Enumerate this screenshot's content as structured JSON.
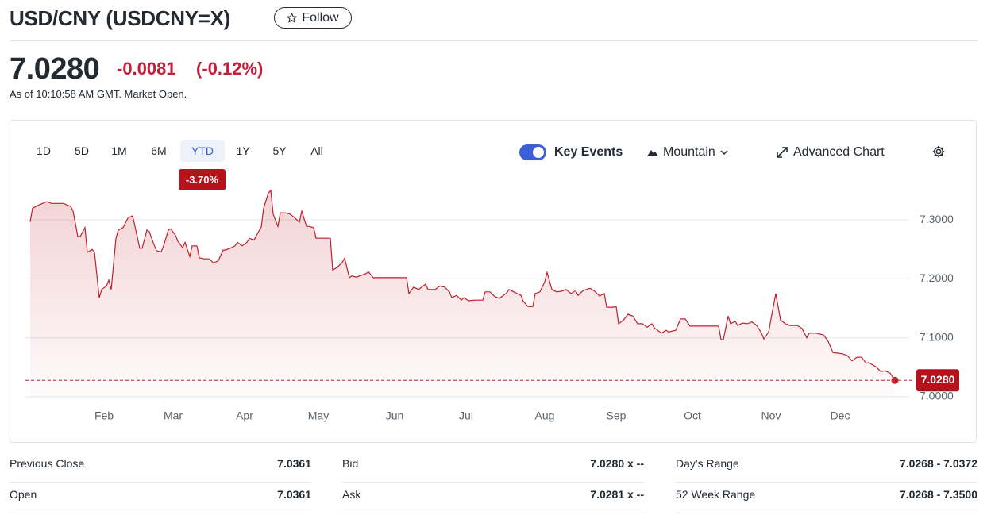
{
  "header": {
    "title": "USD/CNY (USDCNY=X)",
    "follow": "Follow"
  },
  "quote": {
    "price": "7.0280",
    "change": "-0.0081",
    "change_pct": "(-0.12%)",
    "as_of": "As of 10:10:58 AM GMT. Market Open."
  },
  "range": {
    "tabs": [
      "1D",
      "5D",
      "1M",
      "6M",
      "YTD",
      "1Y",
      "5Y",
      "All"
    ],
    "selected": "YTD",
    "badge": "-3.70%"
  },
  "toolbar": {
    "key_events": "Key Events",
    "chart_style": "Mountain",
    "advanced": "Advanced Chart"
  },
  "chart_data": {
    "type": "area",
    "color": "#c0202a",
    "x": [
      0,
      1,
      4,
      7,
      9,
      11,
      14,
      17,
      18,
      20,
      21,
      23,
      24,
      26,
      27,
      29,
      30,
      32,
      33,
      34,
      36,
      37,
      39,
      41,
      43,
      44,
      46,
      47,
      49,
      50,
      52,
      53,
      55,
      56,
      58,
      59,
      61,
      62,
      64,
      65,
      67,
      68,
      70,
      71,
      73,
      75,
      76,
      77,
      79,
      81,
      82,
      84,
      86,
      87,
      89,
      91,
      92,
      94,
      95,
      97,
      98,
      100,
      101,
      102,
      104,
      105,
      107,
      109,
      111,
      113,
      114,
      116,
      117,
      119,
      120,
      123,
      126,
      127,
      129,
      131,
      132,
      134,
      135,
      137,
      139,
      141,
      142,
      144,
      147,
      152,
      158,
      159,
      161,
      163,
      166,
      167,
      170,
      172,
      174,
      176,
      177,
      179,
      181,
      182,
      184,
      187,
      190,
      191,
      193,
      195,
      197,
      200,
      201,
      203,
      206,
      207,
      209,
      211,
      212,
      214,
      216,
      217,
      219,
      221,
      223,
      225,
      227,
      229,
      230,
      232,
      235,
      237,
      239,
      241,
      242,
      245,
      246,
      247,
      249,
      251,
      253,
      255,
      257,
      259,
      261,
      262,
      265,
      267,
      268,
      271,
      273,
      275,
      277,
      281,
      286,
      289,
      290,
      291,
      293,
      294,
      296,
      297,
      299,
      301,
      303,
      305,
      307,
      308,
      310,
      311,
      313,
      315,
      317,
      319,
      322,
      324,
      326,
      327,
      330,
      333,
      335,
      337,
      339,
      341,
      343,
      345,
      347,
      349,
      351,
      352,
      355,
      357,
      359,
      361,
      363
    ],
    "values": [
      7.297,
      7.32,
      7.326,
      7.331,
      7.328,
      7.328,
      7.328,
      7.323,
      7.315,
      7.272,
      7.272,
      7.287,
      7.245,
      7.25,
      7.245,
      7.168,
      7.182,
      7.188,
      7.198,
      7.182,
      7.269,
      7.283,
      7.287,
      7.303,
      7.307,
      7.289,
      7.252,
      7.252,
      7.283,
      7.28,
      7.258,
      7.248,
      7.246,
      7.256,
      7.283,
      7.285,
      7.274,
      7.264,
      7.253,
      7.262,
      7.238,
      7.256,
      7.256,
      7.236,
      7.234,
      7.234,
      7.231,
      7.227,
      7.231,
      7.249,
      7.249,
      7.252,
      7.256,
      7.262,
      7.256,
      7.262,
      7.269,
      7.266,
      7.274,
      7.288,
      7.32,
      7.346,
      7.35,
      7.31,
      7.289,
      7.312,
      7.312,
      7.31,
      7.304,
      7.296,
      7.315,
      7.289,
      7.289,
      7.287,
      7.269,
      7.269,
      7.269,
      7.215,
      7.22,
      7.228,
      7.235,
      7.202,
      7.205,
      7.203,
      7.206,
      7.209,
      7.212,
      7.202,
      7.202,
      7.202,
      7.202,
      7.175,
      7.186,
      7.182,
      7.191,
      7.182,
      7.182,
      7.188,
      7.186,
      7.178,
      7.168,
      7.172,
      7.164,
      7.168,
      7.163,
      7.164,
      7.164,
      7.178,
      7.178,
      7.17,
      7.167,
      7.176,
      7.182,
      7.178,
      7.172,
      7.162,
      7.153,
      7.153,
      7.175,
      7.178,
      7.195,
      7.211,
      7.182,
      7.178,
      7.179,
      7.182,
      7.175,
      7.18,
      7.172,
      7.18,
      7.184,
      7.179,
      7.171,
      7.175,
      7.152,
      7.152,
      7.153,
      7.124,
      7.13,
      7.14,
      7.137,
      7.124,
      7.124,
      7.118,
      7.124,
      7.117,
      7.108,
      7.113,
      7.11,
      7.113,
      7.132,
      7.132,
      7.12,
      7.12,
      7.12,
      7.12,
      7.097,
      7.097,
      7.137,
      7.124,
      7.128,
      7.121,
      7.125,
      7.124,
      7.127,
      7.121,
      7.108,
      7.098,
      7.11,
      7.132,
      7.175,
      7.13,
      7.124,
      7.121,
      7.121,
      7.116,
      7.1,
      7.108,
      7.108,
      7.105,
      7.094,
      7.075,
      7.074,
      7.073,
      7.07,
      7.061,
      7.067,
      7.067,
      7.057,
      7.058,
      7.051,
      7.043,
      7.044,
      7.04,
      7.028
    ],
    "xlim": [
      0,
      369
    ],
    "xticks": [
      {
        "value": 31,
        "label": "Feb"
      },
      {
        "value": 60,
        "label": "Mar"
      },
      {
        "value": 90,
        "label": "Apr"
      },
      {
        "value": 121,
        "label": "May"
      },
      {
        "value": 153,
        "label": "Jun"
      },
      {
        "value": 183,
        "label": "Jul"
      },
      {
        "value": 216,
        "label": "Aug"
      },
      {
        "value": 246,
        "label": "Sep"
      },
      {
        "value": 278,
        "label": "Oct"
      },
      {
        "value": 311,
        "label": "Nov"
      },
      {
        "value": 340,
        "label": "Dec"
      }
    ],
    "ylim": [
      7.0,
      7.35
    ],
    "yticks": [
      {
        "value": 7.0,
        "label": "7.0000"
      },
      {
        "value": 7.1,
        "label": "7.1000"
      },
      {
        "value": 7.2,
        "label": "7.2000"
      },
      {
        "value": 7.3,
        "label": "7.3000"
      }
    ],
    "grid": true,
    "current": {
      "value": 7.028,
      "label": "7.0280"
    }
  },
  "stats": {
    "columns": [
      {
        "rows": [
          [
            "Previous Close",
            "7.0361"
          ],
          [
            "Open",
            "7.0361"
          ]
        ]
      },
      {
        "rows": [
          [
            "Bid",
            "7.0280 x --"
          ],
          [
            "Ask",
            "7.0281 x --"
          ]
        ]
      },
      {
        "rows": [
          [
            "Day's Range",
            "7.0268 - 7.0372"
          ],
          [
            "52 Week Range",
            "7.0268 - 7.3500"
          ]
        ]
      }
    ]
  }
}
